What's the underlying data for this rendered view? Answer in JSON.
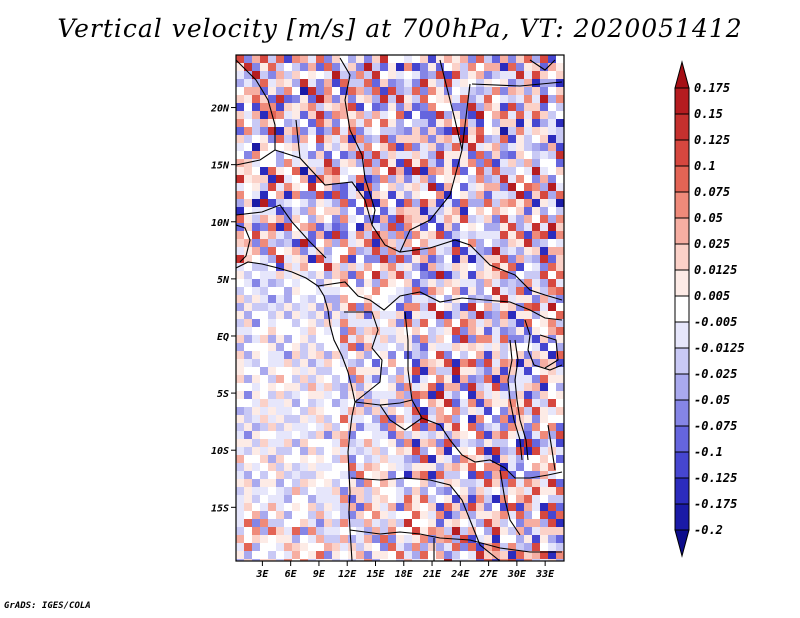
{
  "chart_data": {
    "type": "heatmap",
    "title": "Vertical velocity [m/s] at 700hPa, VT: 2020051412",
    "variable": "Vertical velocity",
    "units": "m/s",
    "level": "700hPa",
    "valid_time": "2020051412",
    "x_ticks": [
      "3E",
      "6E",
      "9E",
      "12E",
      "15E",
      "18E",
      "21E",
      "24E",
      "27E",
      "30E",
      "33E"
    ],
    "x_tick_values": [
      3,
      6,
      9,
      12,
      15,
      18,
      21,
      24,
      27,
      30,
      33
    ],
    "y_ticks": [
      "20N",
      "15N",
      "10N",
      "5N",
      "EQ",
      "5S",
      "10S",
      "15S"
    ],
    "y_tick_values": [
      20,
      15,
      10,
      5,
      0,
      -5,
      -10,
      -15
    ],
    "xlim": [
      0.2,
      35.0
    ],
    "ylim": [
      -19.7,
      24.6
    ],
    "colorbar": {
      "labels": [
        "0.175",
        "0.15",
        "0.125",
        "0.1",
        "0.075",
        "0.05",
        "0.025",
        "0.0125",
        "0.005",
        "-0.005",
        "-0.0125",
        "-0.025",
        "-0.05",
        "-0.075",
        "-0.1",
        "-0.125",
        "-0.175",
        "-0.2"
      ],
      "levels": [
        0.175,
        0.15,
        0.125,
        0.1,
        0.075,
        0.05,
        0.025,
        0.0125,
        0.005,
        -0.005,
        -0.0125,
        -0.025,
        -0.05,
        -0.075,
        -0.1,
        -0.125,
        -0.175,
        -0.2
      ],
      "colors": [
        "#a50f15",
        "#b51c20",
        "#c5302e",
        "#d6473f",
        "#e36455",
        "#ef8a7a",
        "#f6aea2",
        "#fbd1c8",
        "#fdebe6",
        "#ffffff",
        "#e6e6fb",
        "#c9c9f5",
        "#a9a9ee",
        "#8585e6",
        "#6565de",
        "#4646d0",
        "#2b2bbd",
        "#1a1aa6",
        "#0d0d8c"
      ]
    }
  },
  "credit": "GrADS: IGES/COLA"
}
